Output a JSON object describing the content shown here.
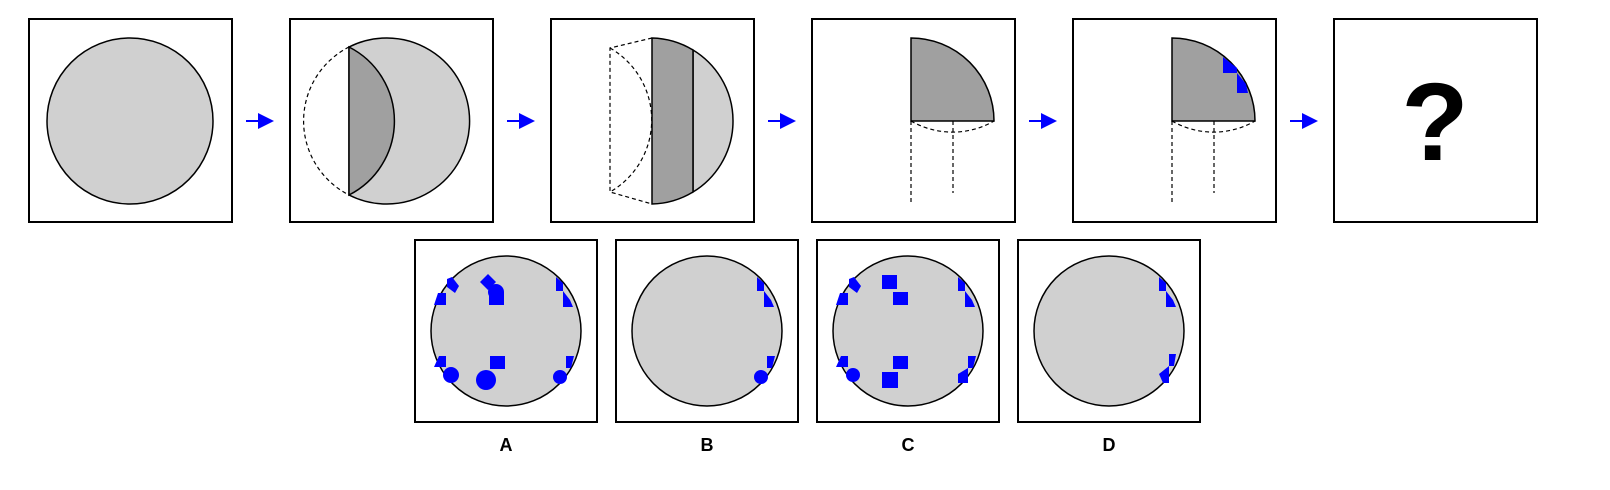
{
  "puzzle": {
    "sequence": [
      {
        "step": 1,
        "content": "full-circle"
      },
      {
        "step": 2,
        "content": "fold-left-segment"
      },
      {
        "step": 3,
        "content": "fold-right-segment"
      },
      {
        "step": 4,
        "content": "fold-to-quarter"
      },
      {
        "step": 5,
        "content": "quarter-with-corner-cuts"
      },
      {
        "step": 6,
        "content": "question-mark",
        "text": "?"
      }
    ],
    "options": [
      {
        "label": "A"
      },
      {
        "label": "B"
      },
      {
        "label": "C"
      },
      {
        "label": "D"
      }
    ]
  },
  "colors": {
    "shape_fill": "#d0d0d0",
    "fold_fill": "#a0a0a0",
    "cut_mark": "#0000ff",
    "arrow": "#0000ff",
    "outline": "#000000"
  }
}
